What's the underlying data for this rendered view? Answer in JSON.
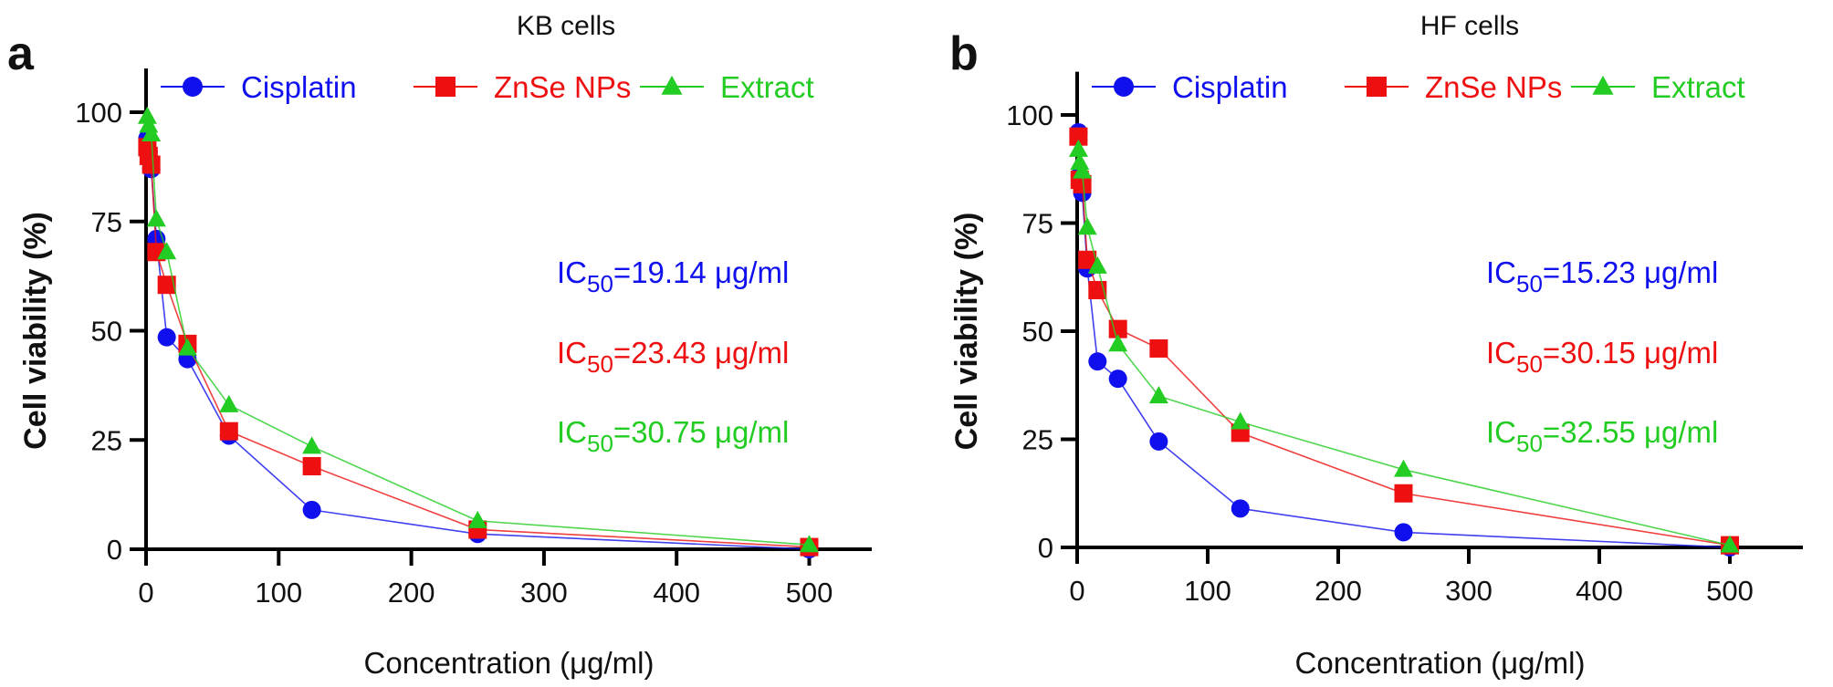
{
  "colors": {
    "Cisplatin": "#1010ee",
    "ZnSe NPs": "#ee1010",
    "Extract": "#22cc22",
    "axis": "#000000"
  },
  "chart_data": [
    {
      "type": "line",
      "panel_label": "a",
      "title": "KB cells",
      "xlabel": "Concentration (μg/ml)",
      "ylabel": "Cell viability (%)",
      "xlim": [
        0,
        550
      ],
      "ylim": [
        0,
        110
      ],
      "xticks": [
        "0",
        "100",
        "200",
        "300",
        "400",
        "500"
      ],
      "yticks": [
        "0",
        "25",
        "50",
        "75",
        "100"
      ],
      "grid": false,
      "legend_placement": "top",
      "x": [
        0.98,
        1.95,
        3.9,
        7.8,
        15.6,
        31.25,
        62.5,
        125,
        250,
        500
      ],
      "series": [
        {
          "name": "Cisplatin",
          "marker": "circle",
          "values": [
            94,
            91,
            87,
            71,
            48.5,
            43.5,
            26,
            9,
            3.5,
            0
          ]
        },
        {
          "name": "ZnSe NPs",
          "marker": "square",
          "values": [
            92,
            90,
            88,
            68,
            60.5,
            47,
            27,
            19,
            4.5,
            0.5
          ]
        },
        {
          "name": "Extract",
          "marker": "triangle",
          "values": [
            99,
            97,
            95,
            75.5,
            68,
            46,
            33,
            23.5,
            6.5,
            1
          ]
        }
      ],
      "annotations": [
        {
          "series": "Cisplatin",
          "prefix": "IC",
          "sub": "50",
          "text": "=19.14 μg/ml"
        },
        {
          "series": "ZnSe NPs",
          "prefix": "IC",
          "sub": "50",
          "text": "=23.43 μg/ml"
        },
        {
          "series": "Extract",
          "prefix": "IC",
          "sub": "50",
          "text": "=30.75 μg/ml"
        }
      ]
    },
    {
      "type": "line",
      "panel_label": "b",
      "title": "HF cells",
      "xlabel": "Concentration (μg/ml)",
      "ylabel": "Cell viability (%)",
      "xlim": [
        0,
        550
      ],
      "ylim": [
        0,
        110
      ],
      "xticks": [
        "0",
        "100",
        "200",
        "300",
        "400",
        "500"
      ],
      "yticks": [
        "0",
        "25",
        "50",
        "75",
        "100"
      ],
      "grid": false,
      "legend_placement": "top",
      "x": [
        0.98,
        1.95,
        3.9,
        7.8,
        15.6,
        31.25,
        62.5,
        125,
        250,
        500
      ],
      "series": [
        {
          "name": "Cisplatin",
          "marker": "circle",
          "values": [
            96,
            86,
            82,
            64.5,
            43,
            39,
            24.5,
            9,
            3.5,
            0
          ]
        },
        {
          "name": "ZnSe NPs",
          "marker": "square",
          "values": [
            95,
            85,
            84,
            66.5,
            59.5,
            50.5,
            46,
            26.5,
            12.5,
            0.5
          ]
        },
        {
          "name": "Extract",
          "marker": "triangle",
          "values": [
            92,
            89,
            87,
            74,
            65,
            47,
            35,
            29,
            18,
            0.5
          ]
        }
      ],
      "annotations": [
        {
          "series": "Cisplatin",
          "prefix": "IC",
          "sub": "50",
          "text": "=15.23 μg/ml"
        },
        {
          "series": "ZnSe NPs",
          "prefix": "IC",
          "sub": "50",
          "text": "=30.15 μg/ml"
        },
        {
          "series": "Extract",
          "prefix": "IC",
          "sub": "50",
          "text": "=32.55 μg/ml"
        }
      ]
    }
  ]
}
